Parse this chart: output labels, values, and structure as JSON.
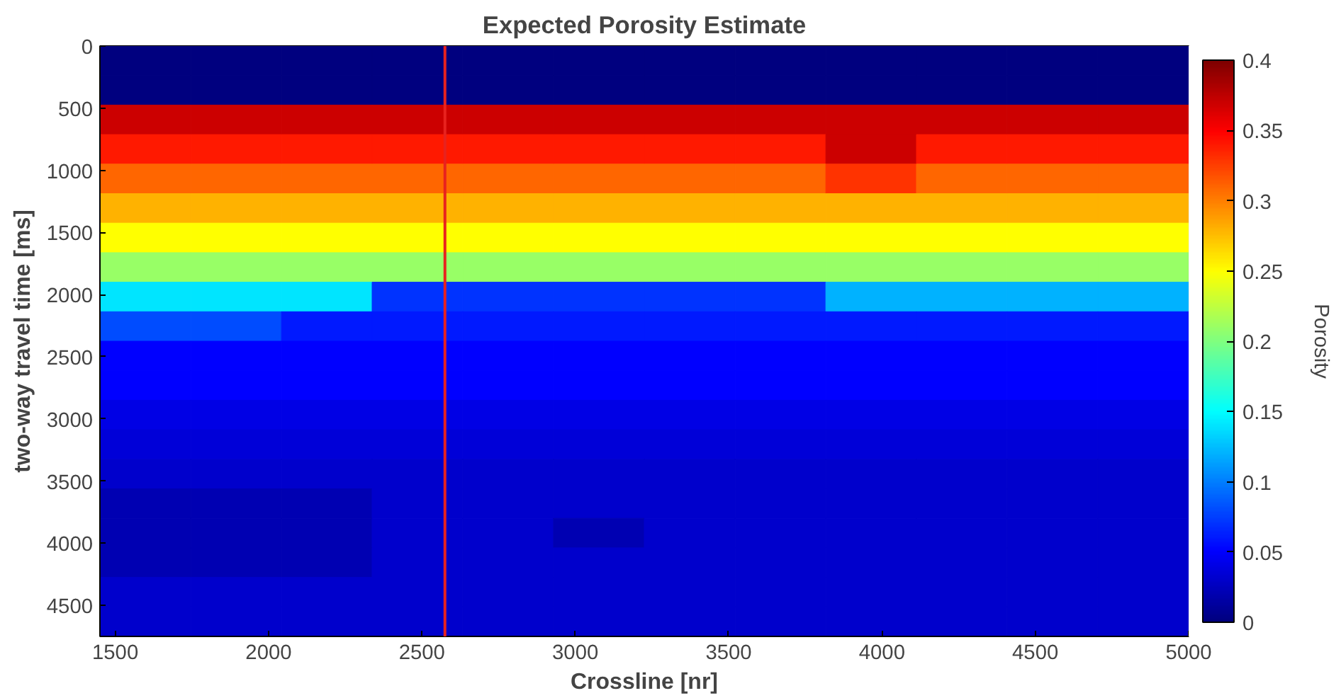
{
  "chart_data": {
    "type": "heatmap",
    "title": "Expected Porosity Estimate",
    "xlabel": "Crossline [nr]",
    "ylabel": "two-way travel time [ms]",
    "clabel": "Porosity",
    "x": [
      1598,
      1894,
      2190,
      2485,
      2781,
      3077,
      3373,
      3669,
      3965,
      4260,
      4556,
      4852
    ],
    "y": [
      119,
      356,
      594,
      831,
      1069,
      1306,
      1544,
      1781,
      2019,
      2256,
      2494,
      2731,
      2969,
      3206,
      3444,
      3681,
      3919,
      4156,
      4394,
      4631
    ],
    "cells": [
      [
        0,
        0,
        0,
        0,
        0,
        0,
        0,
        0,
        0,
        0,
        0,
        0
      ],
      [
        0,
        0,
        0,
        0,
        0,
        0,
        0,
        0,
        0,
        0,
        0,
        0
      ],
      [
        0.37,
        0.37,
        0.37,
        0.37,
        0.37,
        0.37,
        0.37,
        0.37,
        0.37,
        0.37,
        0.37,
        0.37
      ],
      [
        0.34,
        0.34,
        0.34,
        0.34,
        0.34,
        0.34,
        0.34,
        0.34,
        0.37,
        0.34,
        0.34,
        0.34
      ],
      [
        0.31,
        0.31,
        0.31,
        0.31,
        0.31,
        0.31,
        0.31,
        0.31,
        0.33,
        0.31,
        0.31,
        0.31
      ],
      [
        0.28,
        0.28,
        0.28,
        0.28,
        0.28,
        0.28,
        0.28,
        0.28,
        0.28,
        0.28,
        0.28,
        0.28
      ],
      [
        0.25,
        0.25,
        0.25,
        0.25,
        0.25,
        0.25,
        0.25,
        0.25,
        0.25,
        0.25,
        0.25,
        0.25
      ],
      [
        0.21,
        0.21,
        0.21,
        0.21,
        0.21,
        0.21,
        0.21,
        0.21,
        0.21,
        0.21,
        0.21,
        0.21
      ],
      [
        0.14,
        0.14,
        0.14,
        0.07,
        0.07,
        0.07,
        0.07,
        0.07,
        0.12,
        0.12,
        0.12,
        0.12
      ],
      [
        0.08,
        0.08,
        0.06,
        0.06,
        0.06,
        0.06,
        0.06,
        0.06,
        0.06,
        0.06,
        0.06,
        0.06
      ],
      [
        0.05,
        0.05,
        0.05,
        0.05,
        0.05,
        0.05,
        0.05,
        0.05,
        0.05,
        0.05,
        0.05,
        0.05
      ],
      [
        0.05,
        0.05,
        0.05,
        0.05,
        0.05,
        0.05,
        0.05,
        0.05,
        0.05,
        0.05,
        0.05,
        0.05
      ],
      [
        0.04,
        0.04,
        0.04,
        0.04,
        0.04,
        0.04,
        0.04,
        0.04,
        0.04,
        0.04,
        0.04,
        0.04
      ],
      [
        0.035,
        0.035,
        0.035,
        0.035,
        0.035,
        0.035,
        0.035,
        0.035,
        0.035,
        0.035,
        0.035,
        0.035
      ],
      [
        0.03,
        0.03,
        0.03,
        0.03,
        0.03,
        0.03,
        0.03,
        0.03,
        0.03,
        0.03,
        0.03,
        0.03
      ],
      [
        0.02,
        0.02,
        0.02,
        0.03,
        0.03,
        0.03,
        0.03,
        0.03,
        0.03,
        0.03,
        0.03,
        0.03
      ],
      [
        0.02,
        0.02,
        0.02,
        0.03,
        0.03,
        0.02,
        0.03,
        0.03,
        0.03,
        0.03,
        0.03,
        0.03
      ],
      [
        0.02,
        0.02,
        0.02,
        0.03,
        0.03,
        0.03,
        0.03,
        0.03,
        0.03,
        0.03,
        0.03,
        0.03
      ],
      [
        0.03,
        0.03,
        0.03,
        0.03,
        0.03,
        0.03,
        0.03,
        0.03,
        0.03,
        0.03,
        0.03,
        0.03
      ],
      [
        0.03,
        0.03,
        0.03,
        0.03,
        0.03,
        0.03,
        0.03,
        0.03,
        0.03,
        0.03,
        0.03,
        0.03
      ]
    ],
    "xlim": [
      1450,
      5000
    ],
    "xticks": [
      1500,
      2000,
      2500,
      3000,
      3500,
      4000,
      4500,
      5000
    ],
    "ylim": [
      4750,
      0
    ],
    "yticks": [
      0,
      500,
      1000,
      1500,
      2000,
      2500,
      3000,
      3500,
      4000,
      4500
    ],
    "clim": [
      0,
      0.4
    ],
    "cticks": [
      0,
      0.05,
      0.1,
      0.15,
      0.2,
      0.25,
      0.3,
      0.35,
      0.4
    ],
    "ref_lines": [
      {
        "axis": "x",
        "value": 2575,
        "color": "#e8221f"
      }
    ]
  }
}
